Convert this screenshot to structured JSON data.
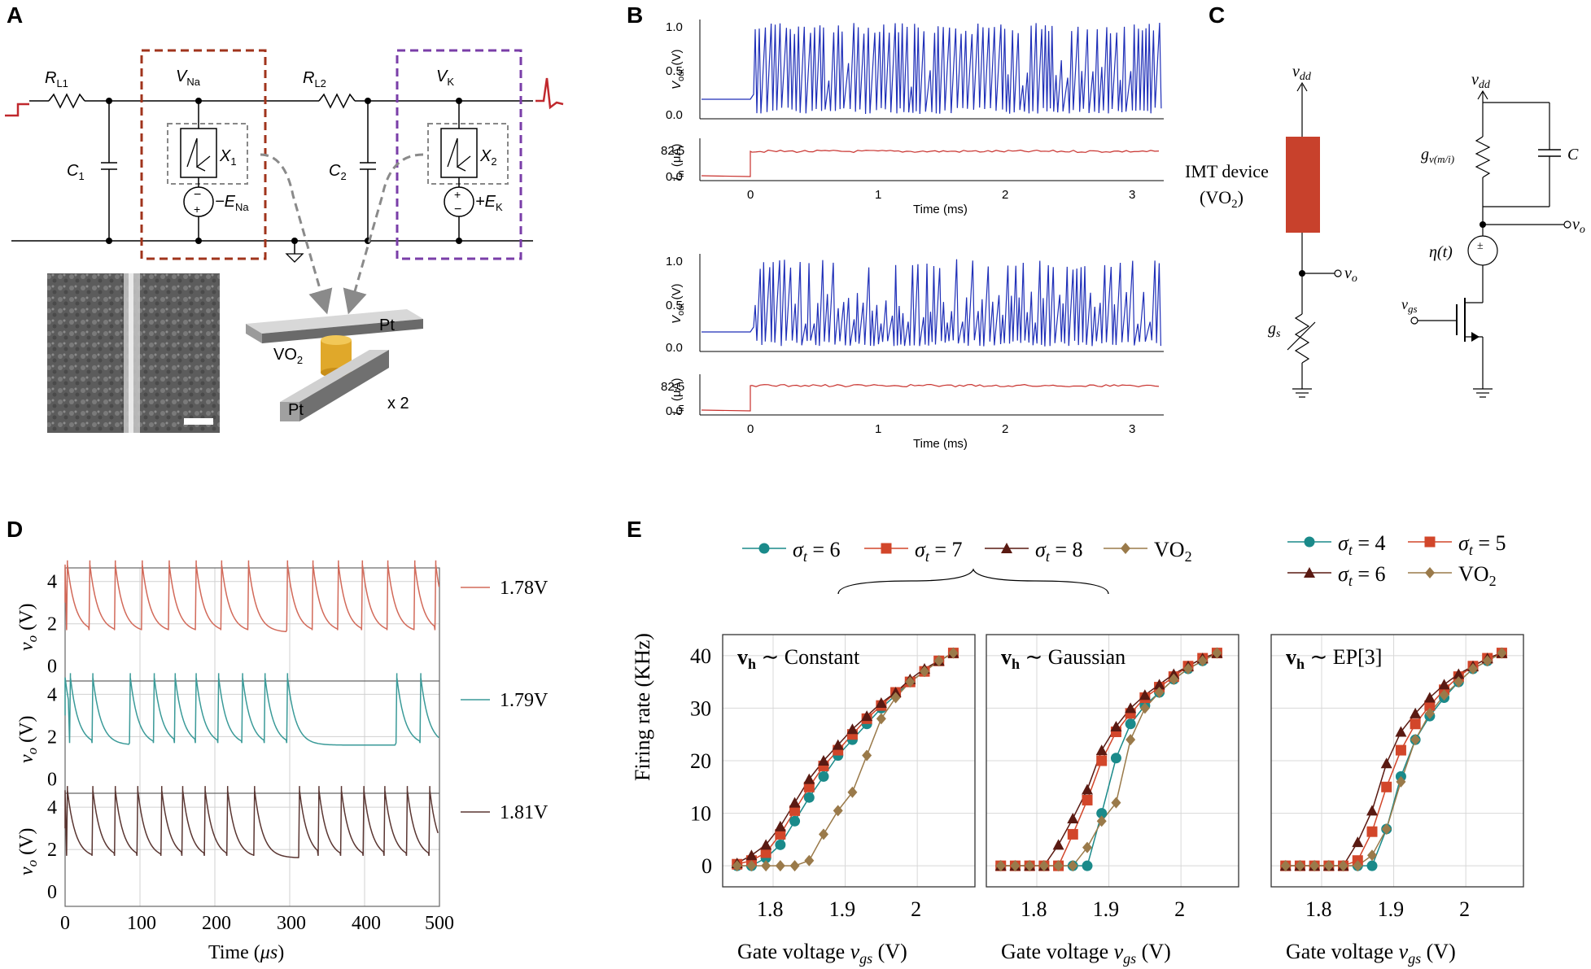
{
  "panel_labels": {
    "a": "A",
    "b": "B",
    "c": "C",
    "d": "D",
    "e": "E"
  },
  "panel_a": {
    "rl1": "R",
    "rl1_sub": "L1",
    "rl2": "R",
    "rl2_sub": "L2",
    "vna": "V",
    "vna_sub": "Na",
    "vk": "V",
    "vk_sub": "K",
    "c1": "C",
    "c1_sub": "1",
    "c2": "C",
    "c2_sub": "2",
    "x1": "X",
    "x1_sub": "1",
    "x2": "X",
    "x2_sub": "2",
    "ena": "−E",
    "ena_sub": "Na",
    "ek": "+E",
    "ek_sub": "K",
    "pt_top": "Pt",
    "pt_bottom": "Pt",
    "vo2": "VO",
    "vo2_sub": "2",
    "times_two": "x 2",
    "colors": {
      "na_box": "#a0341c",
      "k_box": "#7a3ea8",
      "spike": "#c0282d",
      "dev": "#e0a82a"
    }
  },
  "panel_b": {
    "vout_label": "V",
    "vout_sub": "out",
    "vout_unit": " (V)",
    "iin_label": "I",
    "iin_sub": "in",
    "iin_unit": " (μA)",
    "vout_ticks": [
      "1.0",
      "0.5",
      "0.0"
    ],
    "iin_ticks": [
      "82.5",
      "0.0"
    ],
    "time_ticks": [
      "0",
      "1",
      "2",
      "3"
    ],
    "xlabel": "Time (ms)",
    "colors": {
      "vout": "#1f2fb8",
      "iin": "#c8302c"
    }
  },
  "panel_c": {
    "left": {
      "vdd": "v",
      "vdd_sub": "dd",
      "device": "IMT device",
      "device2": "(VO",
      "device2_sub": "2",
      "device2_end": ")",
      "vo": "v",
      "vo_sub": "o",
      "gs": "g",
      "gs_sub": "s"
    },
    "right": {
      "vdd": "v",
      "vdd_sub": "dd",
      "gv": "g",
      "gv_sub": "v(m/i)",
      "cap": "C",
      "vo": "v",
      "vo_sub": "o",
      "eta": "η(t)",
      "vgs": "v",
      "vgs_sub": "gs"
    },
    "colors": {
      "device": "#c8412c"
    }
  },
  "panel_d": {
    "ylabel": "v",
    "ylabel_sub": "o",
    "ylabel_unit": " (V)",
    "yticks": [
      "4",
      "2",
      "0"
    ],
    "xticks": [
      "0",
      "100",
      "200",
      "300",
      "400",
      "500"
    ],
    "xlabel": "Time (",
    "xlabel_mu": "μs",
    "xlabel_end": ")",
    "legend": [
      "1.78V",
      "1.79V",
      "1.81V"
    ],
    "colors": [
      "#d26a5a",
      "#3a9a98",
      "#5a3632"
    ]
  },
  "panel_e": {
    "legend_left": [
      {
        "label": "σ",
        "sub": "t",
        "value": " = 6",
        "color": "#1a8a8a",
        "marker": "circle"
      },
      {
        "label": "σ",
        "sub": "t",
        "value": " = 7",
        "color": "#d2462a",
        "marker": "square"
      },
      {
        "label": "σ",
        "sub": "t",
        "value": " = 8",
        "color": "#5a1a12",
        "marker": "triangle"
      },
      {
        "label": "VO",
        "sub": "2",
        "value": "",
        "color": "#9a7a4a",
        "marker": "diamond"
      }
    ],
    "legend_right": [
      {
        "label": "σ",
        "sub": "t",
        "value": " = 4",
        "color": "#1a8a8a",
        "marker": "circle"
      },
      {
        "label": "σ",
        "sub": "t",
        "value": " = 5",
        "color": "#d2462a",
        "marker": "square"
      },
      {
        "label": "σ",
        "sub": "t",
        "value": " = 6",
        "color": "#5a1a12",
        "marker": "triangle"
      },
      {
        "label": "VO",
        "sub": "2",
        "value": "",
        "color": "#9a7a4a",
        "marker": "diamond"
      }
    ],
    "subplot_titles": [
      {
        "v": "v",
        "sub": "h",
        "rest": " ∼ Constant"
      },
      {
        "v": "v",
        "sub": "h",
        "rest": " ∼ Gaussian"
      },
      {
        "v": "v",
        "sub": "h",
        "rest": " ∼ EP[3]"
      }
    ],
    "ylabel": "Firing rate (KHz)",
    "xlabel_prefix": "Gate voltage ",
    "xlabel_v": "v",
    "xlabel_sub": "gs",
    "xlabel_suffix": " (V)",
    "yticks": [
      "40",
      "30",
      "20",
      "10",
      "0"
    ],
    "xticks": [
      "1.8",
      "1.9",
      "2"
    ]
  },
  "chart_data": [
    {
      "type": "line",
      "title": "Panel E: vh ∼ Constant",
      "xlabel": "Gate voltage vgs (V)",
      "ylabel": "Firing rate (KHz)",
      "xlim": [
        1.73,
        2.08
      ],
      "ylim": [
        -4,
        44
      ],
      "x": [
        1.75,
        1.77,
        1.79,
        1.81,
        1.83,
        1.85,
        1.87,
        1.89,
        1.91,
        1.93,
        1.95,
        1.97,
        1.99,
        2.01,
        2.03,
        2.05
      ],
      "series": [
        {
          "name": "σt = 6",
          "values": [
            0,
            0,
            1.5,
            4,
            8.5,
            13,
            17,
            21,
            24,
            27,
            30,
            32.5,
            35,
            37,
            39,
            40.5
          ]
        },
        {
          "name": "σt = 7",
          "values": [
            0.3,
            1,
            2.5,
            6,
            10.5,
            15,
            19,
            22,
            25,
            28,
            30.5,
            33,
            35,
            37,
            39,
            40.5
          ]
        },
        {
          "name": "σt = 8",
          "values": [
            0.5,
            2,
            4,
            7.5,
            12,
            16.5,
            20,
            23,
            26,
            28.5,
            31,
            33,
            35.5,
            37.5,
            39,
            40.5
          ]
        },
        {
          "name": "VO2",
          "values": [
            0,
            0,
            0,
            0,
            0,
            1,
            6,
            10.5,
            14,
            21,
            28,
            32,
            35,
            37,
            39,
            40.5
          ]
        }
      ]
    },
    {
      "type": "line",
      "title": "Panel E: vh ∼ Gaussian",
      "xlabel": "Gate voltage vgs (V)",
      "ylabel": "Firing rate (KHz)",
      "xlim": [
        1.73,
        2.08
      ],
      "ylim": [
        -4,
        44
      ],
      "x": [
        1.75,
        1.77,
        1.79,
        1.81,
        1.83,
        1.85,
        1.87,
        1.89,
        1.91,
        1.93,
        1.95,
        1.97,
        1.99,
        2.01,
        2.03,
        2.05
      ],
      "series": [
        {
          "name": "σt = 6",
          "values": [
            0,
            0,
            0,
            0,
            0,
            0,
            0,
            10,
            20.5,
            27,
            30.5,
            33,
            35.5,
            37.5,
            39,
            40.5
          ]
        },
        {
          "name": "σt = 7",
          "values": [
            0,
            0,
            0,
            0,
            0,
            6,
            12.5,
            20,
            25.5,
            29,
            32,
            34,
            36,
            38,
            39.5,
            40.5
          ]
        },
        {
          "name": "σt = 8",
          "values": [
            0,
            0,
            0,
            0,
            4,
            9,
            14.5,
            22,
            26.5,
            30,
            32.5,
            34.5,
            36.5,
            38,
            39.5,
            40.5
          ]
        },
        {
          "name": "VO2",
          "values": [
            0,
            0,
            0,
            0,
            0,
            0,
            3.5,
            8.5,
            12,
            24,
            30,
            33,
            35.5,
            37.5,
            39,
            40.5
          ]
        }
      ]
    },
    {
      "type": "line",
      "title": "Panel E: vh ∼ EP[3]",
      "xlabel": "Gate voltage vgs (V)",
      "ylabel": "Firing rate (KHz)",
      "xlim": [
        1.73,
        2.08
      ],
      "ylim": [
        -4,
        44
      ],
      "x": [
        1.75,
        1.77,
        1.79,
        1.81,
        1.83,
        1.85,
        1.87,
        1.89,
        1.91,
        1.93,
        1.95,
        1.97,
        1.99,
        2.01,
        2.03,
        2.05
      ],
      "series": [
        {
          "name": "σt = 4",
          "values": [
            0,
            0,
            0,
            0,
            0,
            0,
            0,
            7,
            17,
            24,
            28.5,
            32,
            35,
            37.5,
            39,
            40.5
          ]
        },
        {
          "name": "σt = 5",
          "values": [
            0,
            0,
            0,
            0,
            0,
            1,
            6.5,
            15,
            22,
            27,
            30.5,
            33.5,
            36,
            38,
            39.5,
            40.5
          ]
        },
        {
          "name": "σt = 6",
          "values": [
            0,
            0,
            0,
            0,
            0,
            4.5,
            10.5,
            19.5,
            25.5,
            29,
            32,
            34.5,
            36.5,
            38,
            39.5,
            40.5
          ]
        },
        {
          "name": "VO2",
          "values": [
            0,
            0,
            0,
            0,
            0,
            0,
            2,
            7,
            16,
            24,
            29,
            32.5,
            35,
            37.5,
            39,
            40.5
          ]
        }
      ]
    }
  ]
}
